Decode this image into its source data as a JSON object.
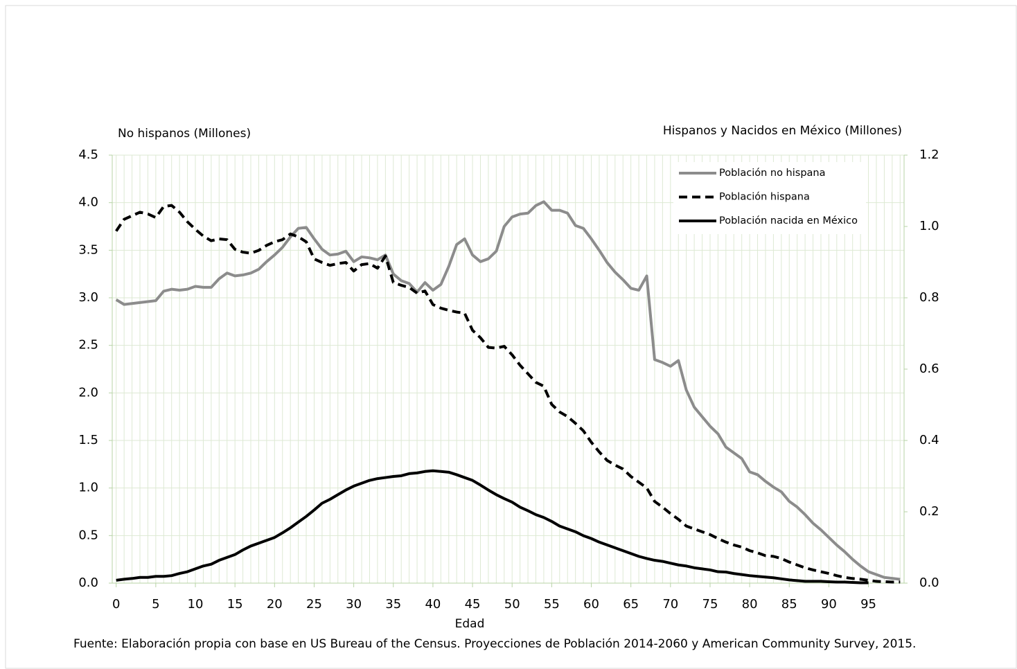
{
  "chart_data": {
    "type": "line",
    "y_label": "No hispanos (Millones)",
    "y2_label": "Hispanos y Nacidos en México (Millones)",
    "x_label": "Edad",
    "source": "Fuente: Elaboración propia con base en US Bureau of the Census. Proyecciones de Población 2014-2060 y American Community Survey, 2015.",
    "x": [
      0,
      1,
      2,
      3,
      4,
      5,
      6,
      7,
      8,
      9,
      10,
      11,
      12,
      13,
      14,
      15,
      16,
      17,
      18,
      19,
      20,
      21,
      22,
      23,
      24,
      25,
      26,
      27,
      28,
      29,
      30,
      31,
      32,
      33,
      34,
      35,
      36,
      37,
      38,
      39,
      40,
      41,
      42,
      43,
      44,
      45,
      46,
      47,
      48,
      49,
      50,
      51,
      52,
      53,
      54,
      55,
      56,
      57,
      58,
      59,
      60,
      61,
      62,
      63,
      64,
      65,
      66,
      67,
      68,
      69,
      70,
      71,
      72,
      73,
      74,
      75,
      76,
      77,
      78,
      79,
      80,
      81,
      82,
      83,
      84,
      85,
      86,
      87,
      88,
      89,
      90,
      91,
      92,
      93,
      94,
      95,
      96,
      97,
      98,
      99
    ],
    "xlim": [
      -0.5,
      99.5
    ],
    "xticks": [
      0,
      5,
      10,
      15,
      20,
      25,
      30,
      35,
      40,
      45,
      50,
      55,
      60,
      65,
      70,
      75,
      80,
      85,
      90,
      95
    ],
    "ylim": [
      0,
      4.5
    ],
    "yticks": [
      {
        "value": 0,
        "label": "0.0"
      },
      0.5,
      {
        "value": 1,
        "label": "1.0"
      },
      1.5,
      {
        "value": 2,
        "label": "2.0"
      },
      2.5,
      {
        "value": 3,
        "label": "3.0"
      },
      3.5,
      {
        "value": 4,
        "label": "4.0"
      },
      4.5
    ],
    "y2lim": [
      0,
      1.2
    ],
    "y2ticks": [
      {
        "value": 0,
        "label": "0.0"
      },
      0.2,
      0.4,
      0.6,
      0.8,
      {
        "value": 1,
        "label": "1.0"
      },
      1.2
    ],
    "grid": true,
    "xgrid": true,
    "legend": "upper right",
    "series": [
      {
        "name": "Población no hispana",
        "color": "#8c8c8c",
        "dash": "solid",
        "values": [
          2.98,
          2.93,
          2.94,
          2.95,
          2.96,
          2.97,
          3.07,
          3.09,
          3.08,
          3.09,
          3.12,
          3.11,
          3.11,
          3.2,
          3.26,
          3.23,
          3.24,
          3.26,
          3.3,
          3.38,
          3.45,
          3.53,
          3.64,
          3.73,
          3.74,
          3.62,
          3.51,
          3.45,
          3.46,
          3.49,
          3.38,
          3.43,
          3.42,
          3.4,
          3.45,
          3.25,
          3.18,
          3.15,
          3.06,
          3.16,
          3.08,
          3.14,
          3.33,
          3.56,
          3.62,
          3.45,
          3.38,
          3.41,
          3.49,
          3.75,
          3.85,
          3.88,
          3.89,
          3.97,
          4.01,
          3.92,
          3.92,
          3.89,
          3.76,
          3.73,
          3.62,
          3.5,
          3.37,
          3.27,
          3.19,
          3.1,
          3.08,
          3.23,
          2.35,
          2.32,
          2.28,
          2.34,
          2.03,
          1.85,
          1.75,
          1.65,
          1.57,
          1.43,
          1.37,
          1.31,
          1.17,
          1.14,
          1.07,
          1.01,
          0.96,
          0.86,
          0.8,
          0.72,
          0.63,
          0.56,
          0.48,
          0.4,
          0.33,
          0.25,
          0.18,
          0.12,
          0.09,
          0.06,
          0.05,
          0.04
        ]
      },
      {
        "name": "Población hispana",
        "color": "#000000",
        "dash": "dashed",
        "axis": "y2",
        "values": [
          0.987,
          1.02,
          1.03,
          1.04,
          1.035,
          1.025,
          1.056,
          1.059,
          1.04,
          1.013,
          0.992,
          0.973,
          0.96,
          0.965,
          0.963,
          0.936,
          0.928,
          0.925,
          0.933,
          0.947,
          0.957,
          0.963,
          0.979,
          0.971,
          0.957,
          0.909,
          0.899,
          0.891,
          0.896,
          0.899,
          0.875,
          0.893,
          0.896,
          0.883,
          0.917,
          0.843,
          0.835,
          0.829,
          0.813,
          0.819,
          0.781,
          0.771,
          0.765,
          0.76,
          0.757,
          0.709,
          0.688,
          0.661,
          0.659,
          0.664,
          0.64,
          0.611,
          0.587,
          0.563,
          0.552,
          0.501,
          0.48,
          0.467,
          0.448,
          0.427,
          0.395,
          0.368,
          0.344,
          0.331,
          0.32,
          0.299,
          0.283,
          0.267,
          0.229,
          0.213,
          0.195,
          0.179,
          0.16,
          0.152,
          0.144,
          0.136,
          0.125,
          0.115,
          0.107,
          0.101,
          0.091,
          0.085,
          0.077,
          0.075,
          0.069,
          0.059,
          0.051,
          0.043,
          0.037,
          0.032,
          0.027,
          0.021,
          0.016,
          0.013,
          0.011,
          0.008,
          0.005,
          0.004,
          0.003,
          0.003
        ]
      },
      {
        "name": "Población nacida en México",
        "color": "#000000",
        "dash": "solid",
        "axis": "y2",
        "values": [
          0.008,
          0.011,
          0.013,
          0.016,
          0.016,
          0.019,
          0.019,
          0.021,
          0.027,
          0.032,
          0.04,
          0.048,
          0.053,
          0.064,
          0.072,
          0.08,
          0.093,
          0.104,
          0.112,
          0.12,
          0.128,
          0.141,
          0.155,
          0.171,
          0.187,
          0.205,
          0.224,
          0.235,
          0.248,
          0.261,
          0.272,
          0.28,
          0.288,
          0.293,
          0.296,
          0.299,
          0.301,
          0.307,
          0.309,
          0.313,
          0.315,
          0.313,
          0.311,
          0.304,
          0.296,
          0.288,
          0.275,
          0.261,
          0.248,
          0.237,
          0.227,
          0.213,
          0.203,
          0.192,
          0.184,
          0.173,
          0.16,
          0.152,
          0.144,
          0.133,
          0.125,
          0.115,
          0.107,
          0.099,
          0.091,
          0.083,
          0.075,
          0.069,
          0.064,
          0.061,
          0.056,
          0.051,
          0.048,
          0.043,
          0.04,
          0.037,
          0.032,
          0.031,
          0.027,
          0.024,
          0.021,
          0.019,
          0.017,
          0.015,
          0.012,
          0.009,
          0.007,
          0.005,
          0.005,
          0.005,
          0.004,
          0.003,
          0.003,
          0.002,
          0.001,
          0.001,
          null,
          null,
          null,
          null
        ]
      }
    ]
  }
}
